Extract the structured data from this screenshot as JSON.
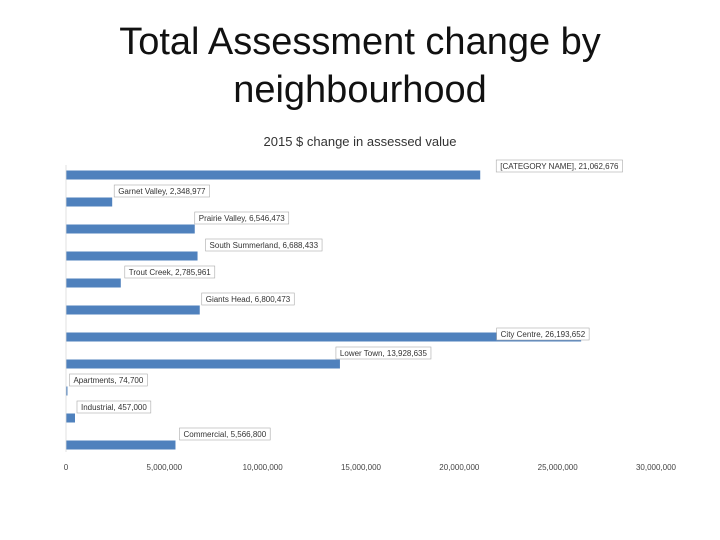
{
  "slide": {
    "title_line1": "Total Assessment change by",
    "title_line2": "neighbourhood"
  },
  "chart_data": {
    "type": "bar",
    "orientation": "horizontal",
    "title": "2015 $ change in assessed value",
    "xlim": [
      0,
      30000000
    ],
    "x_ticks": [
      0,
      5000000,
      10000000,
      15000000,
      20000000,
      25000000,
      30000000
    ],
    "x_tick_labels": [
      "0",
      "5,000,000",
      "10,000,000",
      "15,000,000",
      "20,000,000",
      "25,000,000",
      "30,000,000"
    ],
    "grid": false,
    "legend": "none",
    "bar_color": "#4f81bd",
    "categories": [
      "[CATEGORY NAME]",
      "Garnet Valley",
      "Prairie Valley",
      "South Summerland",
      "Trout Creek",
      "Giants Head",
      "City Centre",
      "Lower Town",
      "Apartments",
      "Industrial",
      "Commercial"
    ],
    "values": [
      21062676,
      2348977,
      6546473,
      6688433,
      2785961,
      6800473,
      26193652,
      13928635,
      74700,
      457000,
      5566800
    ],
    "data_labels": [
      "[CATEGORY NAME], 21,062,676",
      "Garnet Valley, 2,348,977",
      "Prairie Valley, 6,546,473",
      "South Summerland, 6,688,433",
      "Trout Creek, 2,785,961",
      "Giants Head, 6,800,473",
      "City Centre, 26,193,652",
      "Lower Town, 13,928,635",
      "Apartments, 74,700",
      "Industrial, 457,000",
      "Commercial, 5,566,800"
    ]
  }
}
